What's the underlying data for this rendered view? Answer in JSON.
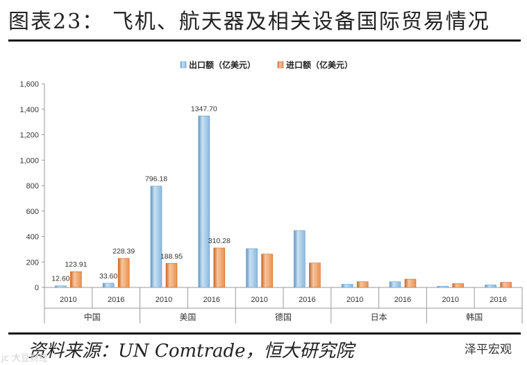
{
  "title": "图表23：  飞机、航天器及相关设备国际贸易情况",
  "source": "资料来源：UN Comtrade，恒大研究院",
  "watermark_right": "泽平宏观",
  "watermark_left": "jc 大豆财经",
  "colors": {
    "export": "#8ab8dc",
    "import": "#e8924e"
  },
  "chart_data": {
    "type": "bar",
    "groups": [
      "中国",
      "美国",
      "德国",
      "日本",
      "韩国"
    ],
    "categories": [
      "2010",
      "2016",
      "2010",
      "2016",
      "2010",
      "2016",
      "2010",
      "2016",
      "2010",
      "2016"
    ],
    "series": [
      {
        "name": "出口额（亿美元）",
        "values": [
          12.6,
          33.6,
          796.18,
          1347.7,
          305,
          447,
          25,
          45,
          10,
          20
        ]
      },
      {
        "name": "进口额（亿美元）",
        "values": [
          123.91,
          228.39,
          188.95,
          310.28,
          262,
          192,
          45,
          65,
          30,
          40
        ]
      }
    ],
    "data_labels": {
      "出口额（亿美元）": [
        "12.60",
        "33.60",
        "796.18",
        "1347.70",
        null,
        null,
        null,
        null,
        null,
        null
      ],
      "进口额（亿美元）": [
        "123.91",
        "228.39",
        "188.95",
        "310.28",
        null,
        null,
        null,
        null,
        null,
        null
      ]
    },
    "yticks": [
      "0",
      "200",
      "400",
      "600",
      "800",
      "1,000",
      "1,200",
      "1,400",
      "1,600"
    ],
    "ylim": [
      0,
      1600
    ],
    "legend_position": "top-center",
    "grid": false
  }
}
